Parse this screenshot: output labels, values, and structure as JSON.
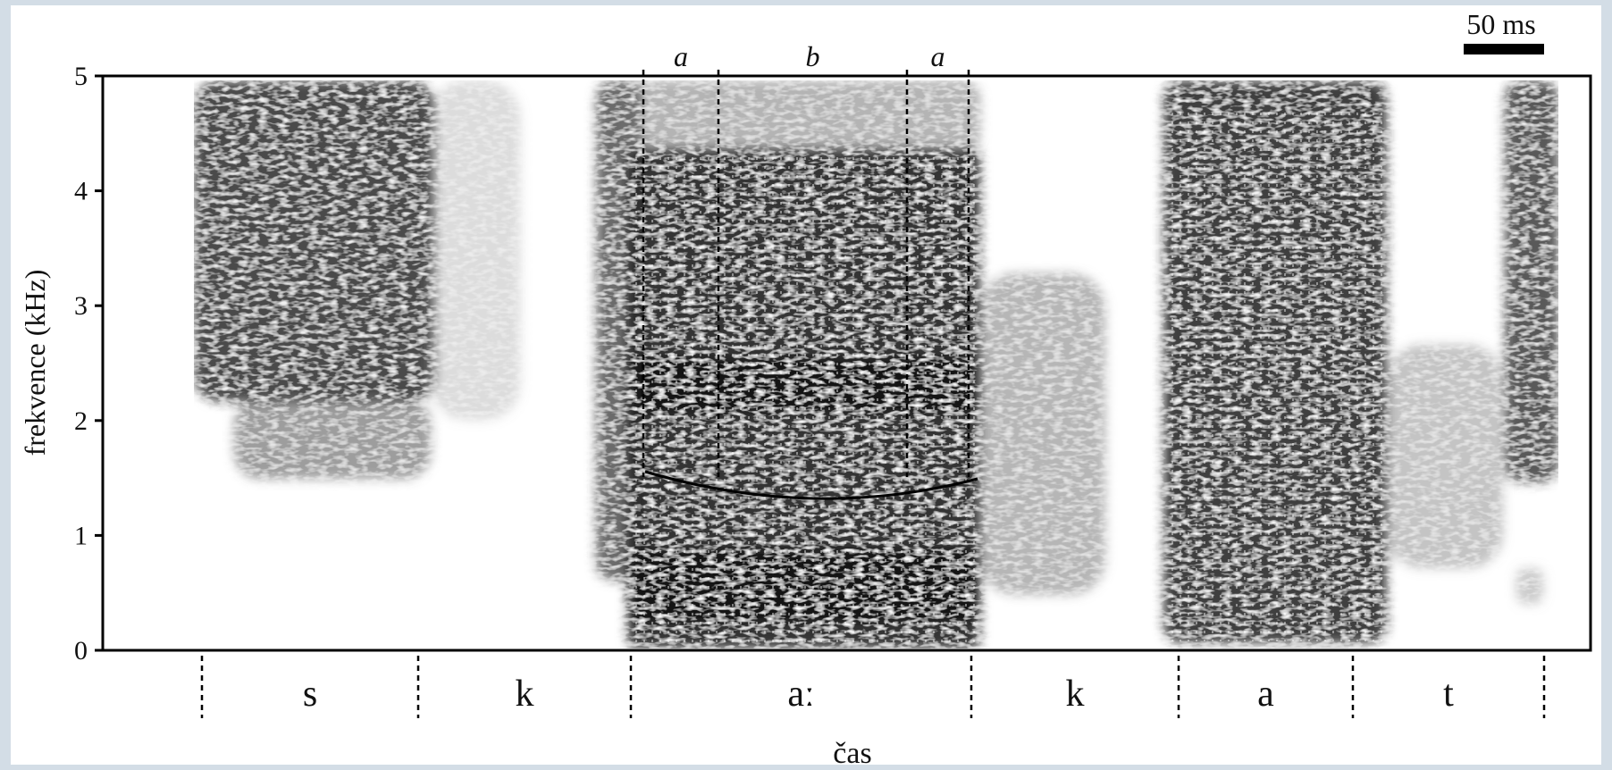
{
  "chart_data": {
    "type": "spectrogram",
    "ylabel": "frekvence (kHz)",
    "xlabel": "čas",
    "ylim": [
      0,
      5
    ],
    "yticks": [
      "0",
      "1",
      "2",
      "3",
      "4",
      "5"
    ],
    "scale_bar": {
      "label": "50 ms",
      "duration_ms": 50
    },
    "segments": [
      "s",
      "k",
      "aː",
      "k",
      "a",
      "t"
    ],
    "subsegments": [
      "a",
      "b",
      "a"
    ],
    "colors": {
      "energy": "#1a1a1a",
      "background": "#ffffff",
      "page": "#d3dde6"
    }
  }
}
